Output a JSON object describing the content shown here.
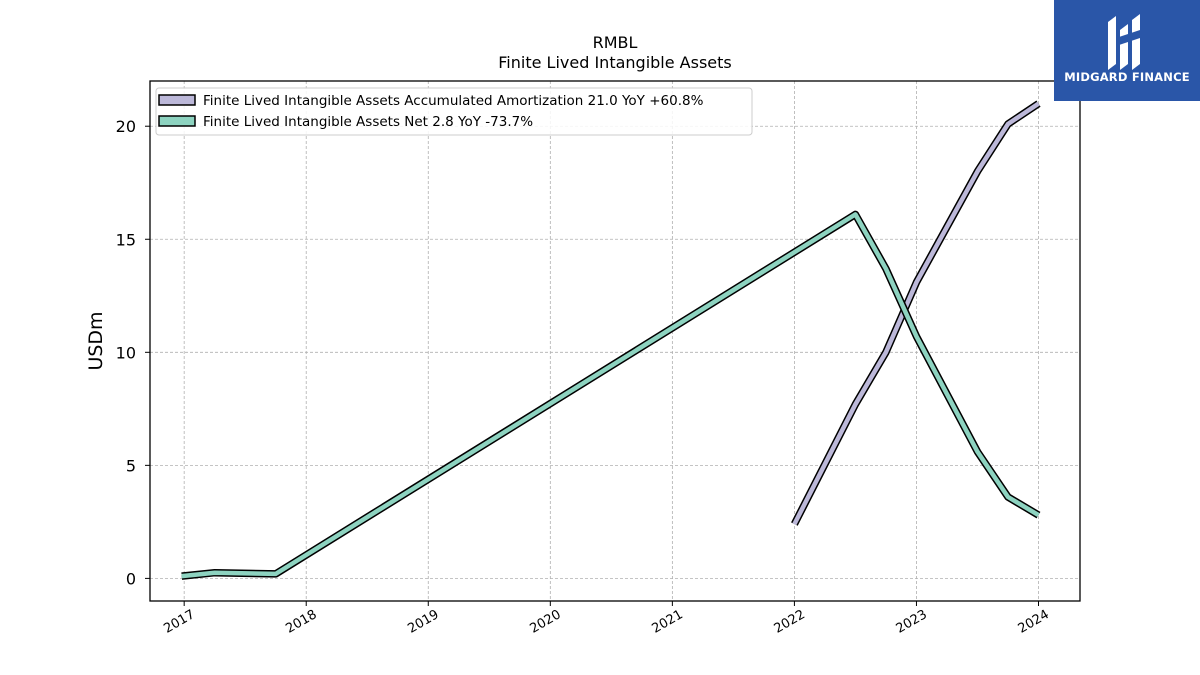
{
  "chart_data": {
    "type": "line",
    "title": "RMBL",
    "subtitle": "Finite Lived Intangible Assets",
    "ylabel": "USDm",
    "xlabel": "",
    "xlim": [
      2016.72,
      2024.34
    ],
    "ylim": [
      -1.0,
      22.0
    ],
    "x_ticks": [
      2017,
      2018,
      2019,
      2020,
      2021,
      2022,
      2023,
      2024
    ],
    "y_ticks": [
      0,
      5,
      10,
      15,
      20
    ],
    "grid": true,
    "legend_position": "top-left",
    "series": [
      {
        "name": "Finite Lived Intangible Assets Accumulated Amortization  21.0 YoY +60.8%",
        "color": "#bcb8d9",
        "x": [
          2022.0,
          2022.5,
          2022.75,
          2023.0,
          2023.5,
          2023.75,
          2024.0
        ],
        "y": [
          2.4,
          7.7,
          10.0,
          13.1,
          18.0,
          20.1,
          21.0
        ]
      },
      {
        "name": "Finite Lived Intangible Assets Net  2.8 YoY -73.7%",
        "color": "#8dd3c0",
        "x": [
          2016.98,
          2017.25,
          2017.75,
          2022.5,
          2022.75,
          2023.0,
          2023.5,
          2023.75,
          2024.0
        ],
        "y": [
          0.1,
          0.25,
          0.2,
          16.1,
          13.7,
          10.7,
          5.6,
          3.6,
          2.8
        ]
      }
    ]
  },
  "logo": {
    "text": "MIDGARD FINANCE",
    "color": "#2a56a8"
  }
}
